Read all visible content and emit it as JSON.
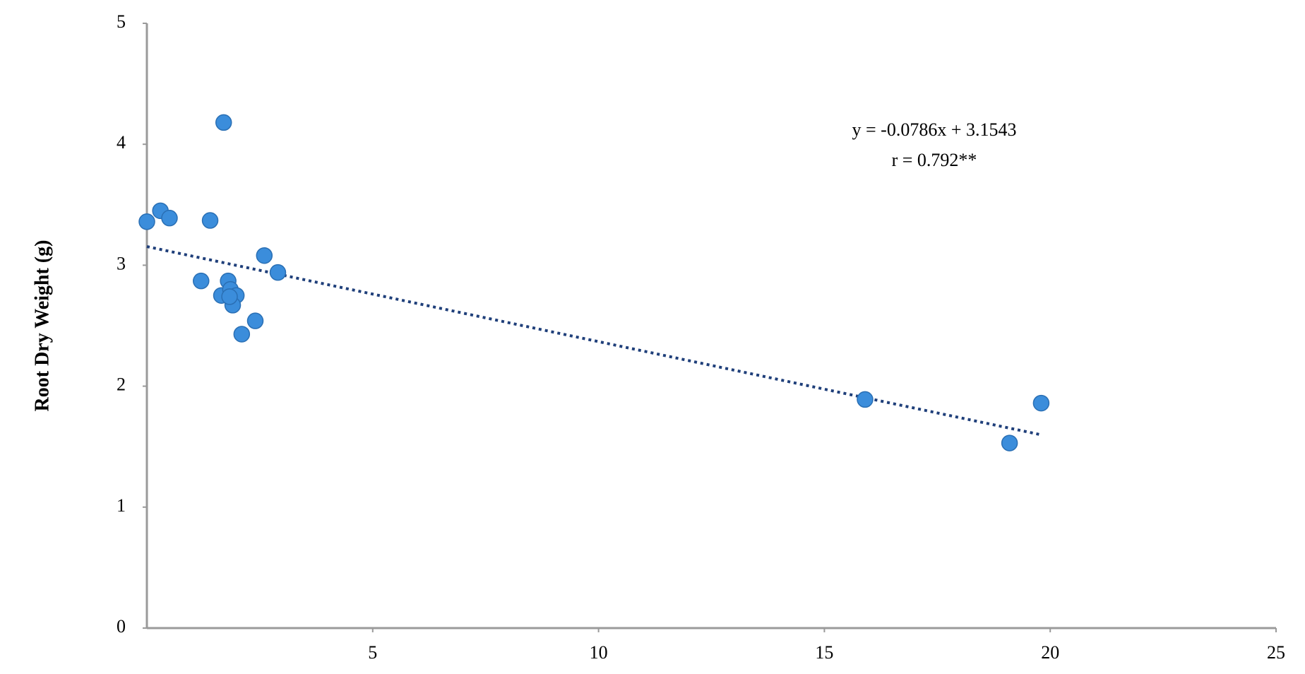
{
  "chart_data": {
    "type": "scatter",
    "y_label": "Root   Dry   Weight   (g)",
    "annotations": [
      "y = -0.0786x + 3.1543",
      "r = 0.792**"
    ],
    "series": [
      {
        "color": "#3b8ddb",
        "x": [
          0,
          0.3,
          0.5,
          1.4,
          1.7,
          1.2,
          1.8,
          1.65,
          1.85,
          1.98,
          1.9,
          1.83,
          2.1,
          2.4,
          2.6,
          2.9,
          15.9,
          19.1,
          19.8
        ],
        "values": [
          3.36,
          3.45,
          3.39,
          3.37,
          4.18,
          2.87,
          2.87,
          2.75,
          2.8,
          2.75,
          2.67,
          2.74,
          2.43,
          2.54,
          3.08,
          2.94,
          1.89,
          1.53,
          1.86
        ]
      }
    ],
    "trendline": {
      "slope": -0.0786,
      "intercept": 3.1543,
      "x": [
        0,
        19.8
      ],
      "color": "#1f3f7a"
    },
    "xlim": [
      0,
      25
    ],
    "xticks": [
      5,
      10,
      15,
      20,
      25
    ],
    "ylim": [
      0,
      5
    ],
    "yticks": [
      0,
      1,
      2,
      3,
      4,
      5
    ]
  }
}
